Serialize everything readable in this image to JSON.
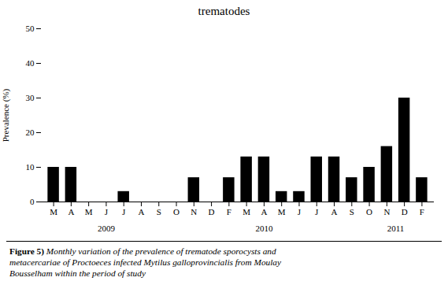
{
  "chart_data": {
    "type": "bar",
    "title": "trematodes",
    "ylabel": "Prevalence (%)",
    "categories": [
      "M",
      "A",
      "M",
      "J",
      "J",
      "A",
      "S",
      "O",
      "N",
      "D",
      "F",
      "M",
      "A",
      "M",
      "J",
      "J",
      "A",
      "S",
      "O",
      "N",
      "D",
      "F"
    ],
    "values": [
      10,
      10,
      0,
      0,
      3,
      0,
      0,
      0,
      7,
      0,
      7,
      13,
      13,
      3,
      3,
      13,
      13,
      7,
      10,
      16,
      30,
      7
    ],
    "color": "#000000",
    "ylim": [
      0,
      50
    ],
    "yticks": [
      0,
      10,
      20,
      30,
      40,
      50
    ],
    "grid": false,
    "annotations": [
      {
        "text": "2009",
        "x": 3.0
      },
      {
        "text": "2010",
        "x": 12.0
      },
      {
        "text": "2011",
        "x": 19.5
      }
    ],
    "caption_label": "Figure 5)",
    "caption": "Monthly variation of the prevalence of trematode sporocysts and\nmetacercariae of Proctoeces infected Mytilus galloprovincialis from Moulay\nBousselham within the period of study"
  }
}
